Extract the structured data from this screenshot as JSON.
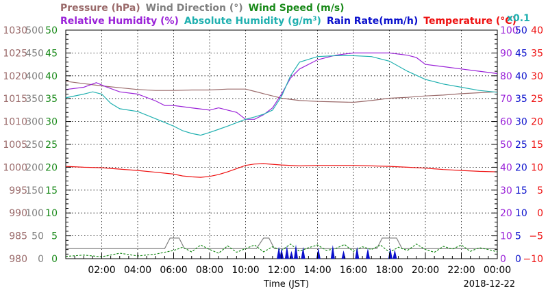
{
  "chart_data": {
    "type": "line",
    "xlabel": "Time (JST)",
    "date": "2018-12-22",
    "x_ticks": [
      "02:00",
      "04:00",
      "06:00",
      "08:00",
      "10:00",
      "12:00",
      "14:00",
      "16:00",
      "18:00",
      "20:00",
      "22:00",
      "00:00"
    ],
    "xlim_hours": [
      0,
      24
    ],
    "grid": true,
    "legend": {
      "row1": [
        {
          "name": "Pressure (hPa)",
          "color": "#9a6a6a"
        },
        {
          "name": "Wind Direction (°)",
          "color": "#808080"
        },
        {
          "name": "Wind Speed (m/s)",
          "color": "#1a8a1a"
        }
      ],
      "row2": [
        {
          "name": "Relative Humidity (%)",
          "color": "#9a22d8"
        },
        {
          "name": "Absolute Humidity (g/m",
          "sup": "3",
          "close": ")",
          "color": "#20b0b0"
        },
        {
          "name": "Rain Rate(mm/h)",
          "color": "#0a10cc"
        },
        {
          "name": "Temperature (°C)",
          "color": "#ee1111"
        }
      ],
      "x01_label": "x0.1"
    },
    "axes": {
      "pressure": {
        "color": "#9a6a6a",
        "ticks": [
          980,
          985,
          990,
          995,
          1000,
          1005,
          1010,
          1015,
          1020,
          1025,
          1030
        ],
        "ylim": [
          980,
          1030
        ]
      },
      "wind_direction": {
        "color": "#808080",
        "ticks": [
          0,
          50,
          100,
          150,
          200,
          250,
          300,
          350,
          400,
          450,
          500
        ],
        "ylim": [
          0,
          500
        ]
      },
      "wind_speed": {
        "color": "#1a8a1a",
        "ticks": [
          0,
          5,
          10,
          15,
          20,
          25,
          30,
          35,
          40,
          45,
          50
        ],
        "ylim": [
          0,
          50
        ]
      },
      "relative_humidity": {
        "color": "#9a22d8",
        "ticks": [
          0,
          10,
          20,
          30,
          40,
          50,
          60,
          70,
          80,
          90,
          100
        ],
        "ylim": [
          0,
          100
        ]
      },
      "rain_rate": {
        "color": "#0a10cc",
        "ticks": [
          0,
          5,
          10,
          15,
          20,
          25,
          30,
          35,
          40,
          45,
          50
        ],
        "ylim": [
          0,
          50
        ]
      },
      "temperature": {
        "color": "#ee1111",
        "ticks": [
          "−10",
          "−5",
          "0",
          "5",
          "10",
          "15",
          "20",
          "25",
          "30",
          "35",
          "40"
        ],
        "ylim": [
          -10,
          40
        ]
      }
    },
    "series": [
      {
        "key": "pressure",
        "axis": "pressure",
        "color": "#9a6a6a",
        "x": [
          0,
          1,
          2,
          3,
          4,
          5,
          6,
          7,
          8,
          9,
          10,
          10.5,
          11,
          11.5,
          12,
          13,
          14,
          15,
          16,
          17,
          18,
          19,
          20,
          21,
          22,
          23,
          24
        ],
        "values": [
          1018.8,
          1018.3,
          1017.8,
          1017.4,
          1017.0,
          1016.8,
          1016.8,
          1016.9,
          1016.9,
          1017.1,
          1017.1,
          1016.6,
          1016.1,
          1015.6,
          1015.1,
          1014.6,
          1014.4,
          1014.3,
          1014.2,
          1014.6,
          1015.1,
          1015.3,
          1015.6,
          1015.8,
          1016.1,
          1016.3,
          1016.5
        ]
      },
      {
        "key": "relative_humidity",
        "axis": "relative_humidity",
        "color": "#9a22d8",
        "x": [
          0,
          1,
          1.7,
          2.3,
          3,
          4,
          5,
          5.5,
          6,
          7,
          8,
          8.5,
          9,
          9.5,
          10,
          10.5,
          11,
          11.5,
          12,
          12.5,
          13,
          14,
          15,
          16,
          17,
          18,
          19,
          19.5,
          20,
          21,
          22,
          23,
          24
        ],
        "values": [
          74,
          75,
          77,
          75,
          73,
          72,
          69,
          67,
          67,
          66,
          65,
          66,
          65,
          64,
          61,
          61,
          63,
          66,
          72,
          79,
          83,
          87,
          89,
          90,
          90,
          90,
          89,
          88,
          85,
          84,
          83,
          82,
          81
        ]
      },
      {
        "key": "absolute_humidity",
        "axis": "wind_direction",
        "color": "#20b0b0",
        "x": [
          0,
          1,
          1.5,
          2,
          2.5,
          3,
          4,
          5,
          6,
          6.5,
          7,
          7.5,
          8,
          8.5,
          9,
          10,
          10.5,
          11,
          11.5,
          12,
          12.5,
          13,
          14,
          15,
          16,
          17,
          18,
          19,
          20,
          21,
          22,
          23,
          24
        ],
        "values": [
          352,
          360,
          365,
          360,
          340,
          328,
          322,
          306,
          290,
          280,
          274,
          270,
          276,
          283,
          290,
          305,
          310,
          316,
          325,
          355,
          400,
          430,
          442,
          444,
          444,
          442,
          432,
          410,
          392,
          382,
          375,
          368,
          364
        ]
      },
      {
        "key": "temperature",
        "axis": "temperature",
        "color": "#ee1111",
        "x": [
          0,
          1,
          2,
          3,
          4,
          5,
          6,
          6.5,
          7,
          7.5,
          8,
          8.5,
          9,
          9.5,
          10,
          10.5,
          11,
          12,
          13,
          14,
          15,
          16,
          17,
          18,
          19,
          20,
          21,
          22,
          23,
          24
        ],
        "values": [
          10.2,
          10.0,
          9.9,
          9.6,
          9.3,
          8.9,
          8.5,
          8.1,
          7.9,
          7.8,
          8.0,
          8.4,
          9.0,
          9.7,
          10.4,
          10.7,
          10.8,
          10.5,
          10.3,
          10.4,
          10.4,
          10.4,
          10.3,
          10.2,
          10.0,
          9.8,
          9.5,
          9.3,
          9.1,
          9.0
        ]
      },
      {
        "key": "wind_direction",
        "axis": "wind_direction",
        "color": "#808080",
        "x": [
          0,
          5.5,
          5.8,
          6.3,
          6.6,
          10.6,
          11.0,
          11.3,
          11.6,
          17.3,
          17.6,
          18.4,
          18.7,
          24
        ],
        "values": [
          22,
          22,
          45,
          45,
          22,
          22,
          45,
          45,
          22,
          22,
          45,
          45,
          22,
          22
        ]
      },
      {
        "key": "wind_speed",
        "axis": "wind_speed",
        "color": "#1a8a1a",
        "x": [
          0,
          1,
          2,
          3,
          4,
          5,
          6,
          6.5,
          7,
          7.5,
          8,
          8.5,
          9,
          9.5,
          10,
          10.5,
          11,
          11.5,
          12,
          12.5,
          13,
          13.5,
          14,
          14.5,
          15,
          15.5,
          16,
          16.5,
          17,
          17.5,
          18,
          18.5,
          19,
          19.5,
          20,
          20.5,
          21,
          21.5,
          22,
          22.5,
          23,
          23.5,
          24
        ],
        "values": [
          0.5,
          0.8,
          0.4,
          1.2,
          0.6,
          1.0,
          1.8,
          2.5,
          1.5,
          3.0,
          2.0,
          1.2,
          2.8,
          1.4,
          2.2,
          3.0,
          1.5,
          2.6,
          1.8,
          3.2,
          1.6,
          2.4,
          3.0,
          1.8,
          2.2,
          3.1,
          1.6,
          2.6,
          2.0,
          3.0,
          1.4,
          2.5,
          1.8,
          3.2,
          2.0,
          1.4,
          2.7,
          2.1,
          3.0,
          1.6,
          2.4,
          2.0,
          1.5
        ]
      },
      {
        "key": "rain_rate",
        "axis": "rain_rate",
        "color": "#0a10cc",
        "type": "spikes",
        "x": [
          11.85,
          12.0,
          12.3,
          12.55,
          12.8,
          13.2,
          14.05,
          14.85,
          15.45,
          16.2,
          16.8,
          18.05,
          18.3
        ],
        "values": [
          2.6,
          2.3,
          2.8,
          1.7,
          3.1,
          2.6,
          2.4,
          3.0,
          1.8,
          2.6,
          2.3,
          2.4,
          2.0
        ]
      }
    ]
  }
}
